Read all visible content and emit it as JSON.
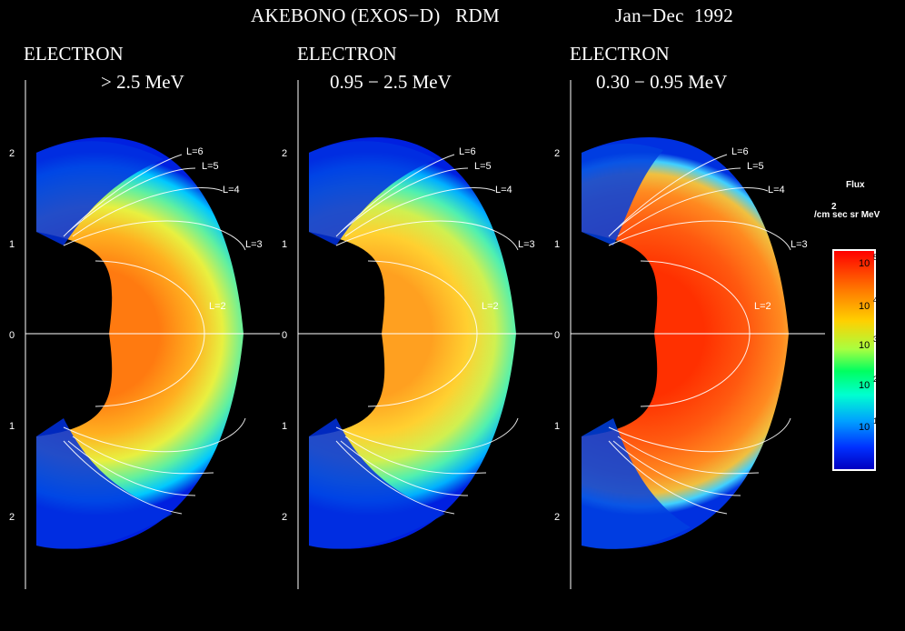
{
  "header": {
    "mission": "AKEBONO (EXOS−D)   RDM",
    "period": "Jan−Dec  1992"
  },
  "panels": [
    {
      "particle": "ELECTRON",
      "energy": "> 2.5 MeV"
    },
    {
      "particle": "ELECTRON",
      "energy": "0.95 − 2.5 MeV"
    },
    {
      "particle": "ELECTRON",
      "energy": "0.30 − 0.95 MeV"
    }
  ],
  "axis": {
    "ticks": [
      "2",
      "1",
      "0",
      "1",
      "2"
    ]
  },
  "shell_labels": [
    "L=6",
    "L=5",
    "L=4",
    "L=3",
    "L=2"
  ],
  "colorbar": {
    "title": "Flux",
    "unit_superscript": "2",
    "unit": "/cm sec sr MeV",
    "ticks": [
      {
        "base": "10",
        "exp": "5"
      },
      {
        "base": "10",
        "exp": "4"
      },
      {
        "base": "10",
        "exp": "3"
      },
      {
        "base": "10",
        "exp": "2"
      },
      {
        "base": "10",
        "exp": "1"
      }
    ],
    "colors": [
      "#ff0000",
      "#ff7a00",
      "#ffd000",
      "#a8ff40",
      "#00ff60",
      "#00ffd0",
      "#00a0ff",
      "#0030ff",
      "#0000c0"
    ]
  },
  "chart_data": [
    {
      "type": "heatmap",
      "title": "ELECTRON > 2.5 MeV",
      "ylim": [
        -2,
        2
      ],
      "shells": [
        "L=2",
        "L=3",
        "L=4",
        "L=5",
        "L=6"
      ]
    },
    {
      "type": "heatmap",
      "title": "ELECTRON 0.95 − 2.5 MeV",
      "ylim": [
        -2,
        2
      ],
      "shells": [
        "L=2",
        "L=3",
        "L=4",
        "L=5",
        "L=6"
      ]
    },
    {
      "type": "heatmap",
      "title": "ELECTRON 0.30 − 0.95 MeV",
      "ylim": [
        -2,
        2
      ],
      "shells": [
        "L=2",
        "L=3",
        "L=4",
        "L=5",
        "L=6"
      ]
    }
  ]
}
